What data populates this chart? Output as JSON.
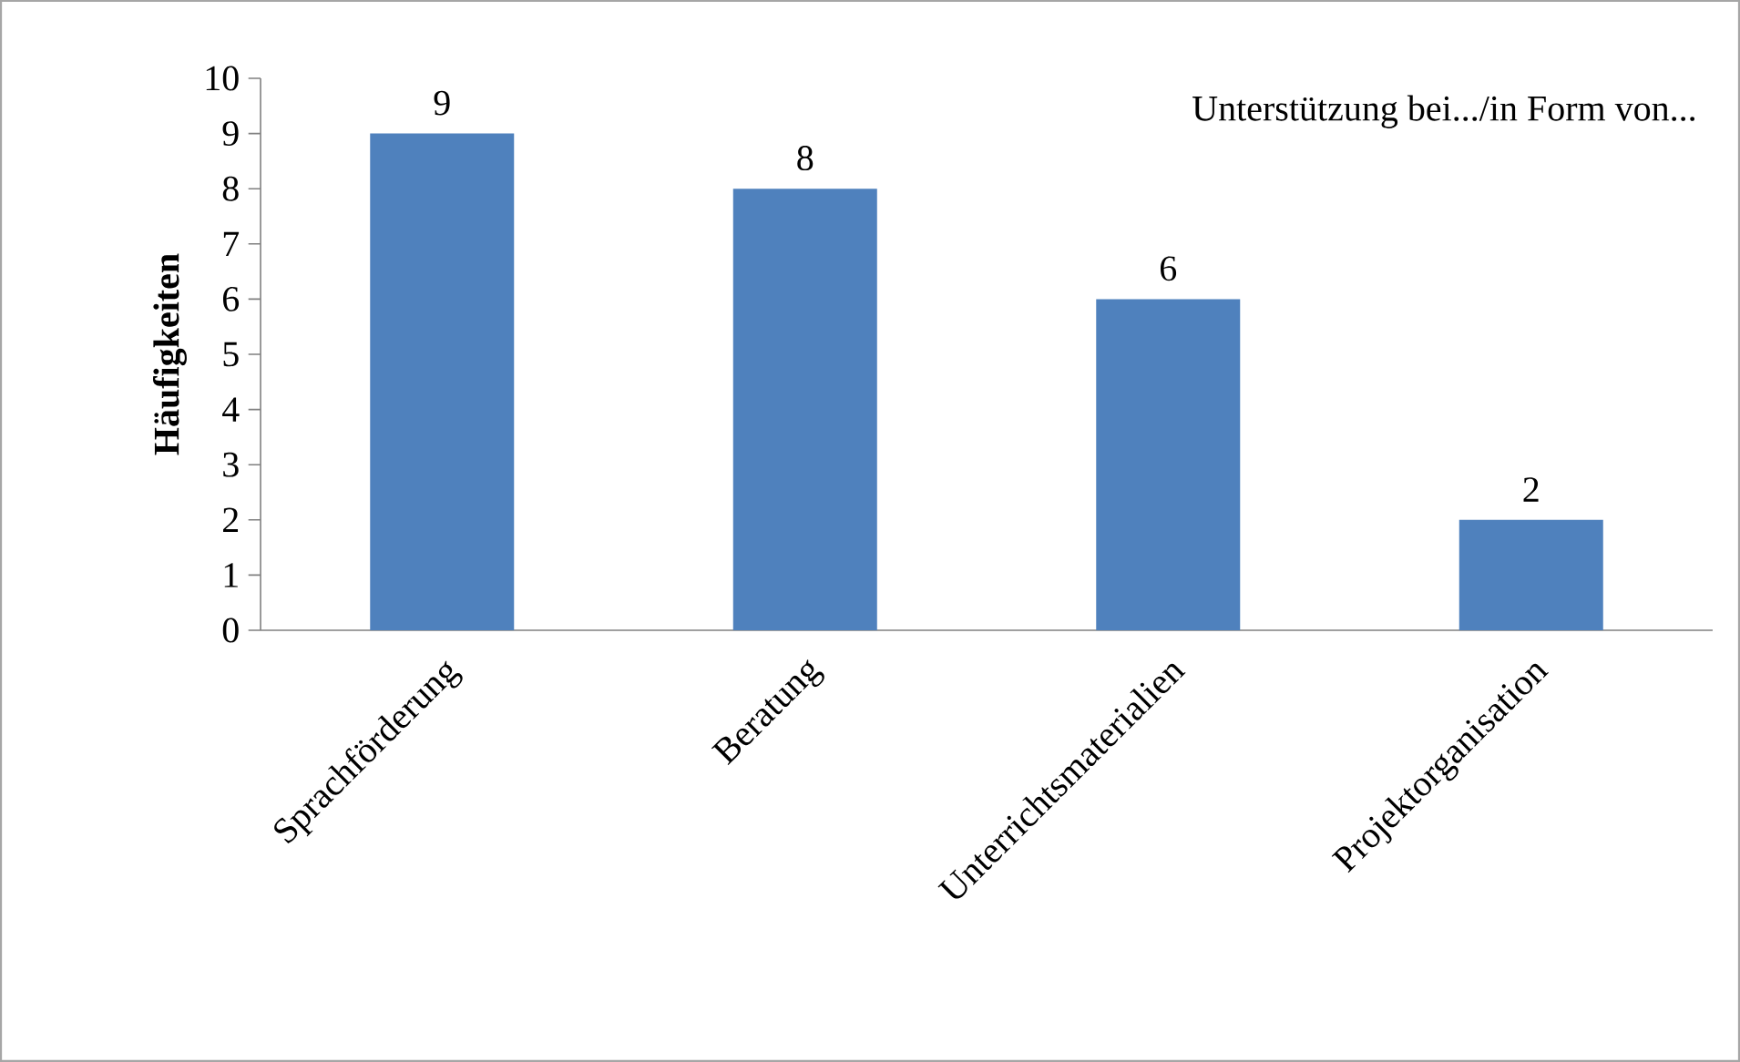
{
  "chart_data": {
    "type": "bar",
    "ylabel": "Häufigkeiten",
    "categories": [
      "Sprachförderung",
      "Beratung",
      "Unterrichtsmaterialien",
      "Projektorganisation"
    ],
    "values": [
      9,
      8,
      6,
      2
    ],
    "color": "#4f81bd",
    "ylim": [
      0,
      10
    ],
    "yticks": [
      0,
      1,
      2,
      3,
      4,
      5,
      6,
      7,
      8,
      9,
      10
    ],
    "data_labels": true,
    "annotations": [
      "Unterstützung bei.../in Form von..."
    ]
  }
}
